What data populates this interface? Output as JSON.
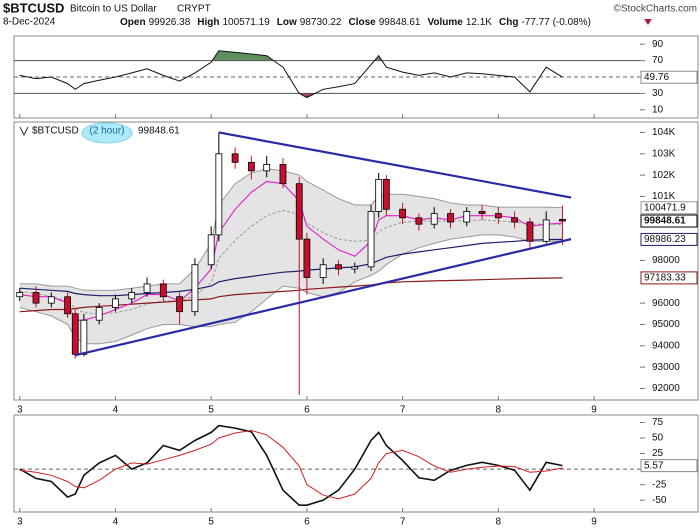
{
  "header": {
    "symbol": "$BTCUSD",
    "name": "Bitcoin to US Dollar",
    "exchange": "CRYPT",
    "credit": "©StockCharts.com",
    "date": "8-Dec-2024",
    "quote": [
      {
        "label": "Open",
        "value": "99926.38"
      },
      {
        "label": "High",
        "value": "100571.19"
      },
      {
        "label": "Low",
        "value": "98730.22"
      },
      {
        "label": "Close",
        "value": "99848.61"
      },
      {
        "label": "Volume",
        "value": "12.1K"
      },
      {
        "label": "Chg",
        "value": "-77.77 (-0.08%)"
      }
    ]
  },
  "chart_data": [
    {
      "type": "line",
      "xlim": [
        2.94,
        9.48
      ],
      "xticks": [
        3,
        4,
        5,
        6,
        7,
        8,
        9
      ],
      "ylim": [
        0,
        100
      ],
      "yticks": [
        90,
        70,
        50,
        30,
        10
      ],
      "last_label": true,
      "levels": [
        {
          "value": 70,
          "fill": "#5f8f5f"
        },
        {
          "value": 50,
          "dash": true
        },
        {
          "value": 30,
          "fill": "#a04a5e"
        }
      ],
      "x": [
        3,
        3.17,
        3.33,
        3.5,
        3.58,
        3.67,
        3.83,
        4,
        4.17,
        4.33,
        4.5,
        4.67,
        4.83,
        5,
        5.08,
        5.25,
        5.42,
        5.58,
        5.75,
        5.92,
        6,
        6.17,
        6.33,
        6.5,
        6.67,
        6.75,
        6.83,
        7,
        7.17,
        7.33,
        7.5,
        7.67,
        7.83,
        8,
        8.17,
        8.33,
        8.5,
        8.67
      ],
      "series": [
        {
          "color": "#111111",
          "values": [
            52,
            48,
            50,
            42,
            35,
            42,
            46,
            50,
            55,
            60,
            52,
            45,
            55,
            68,
            82,
            80,
            78,
            76,
            62,
            30,
            25,
            35,
            38,
            42,
            65,
            76,
            62,
            56,
            52,
            55,
            50,
            55,
            54,
            52,
            50,
            32,
            62,
            49.76
          ]
        }
      ]
    },
    {
      "type": "candlestick",
      "title": "$BTCUSD",
      "period": "(2 hour)",
      "xlim": [
        2.94,
        9.48
      ],
      "xticks": [
        3,
        4,
        5,
        6,
        7,
        8,
        9
      ],
      "x_labels": true,
      "ylim": [
        91460,
        104490
      ],
      "yticks": [
        {
          "value": 104000,
          "label": "104K"
        },
        {
          "value": 103000,
          "label": "103K"
        },
        {
          "value": 102000,
          "label": "102K"
        },
        {
          "value": 101000,
          "label": "101K"
        },
        98000,
        96000,
        95000,
        94000,
        93000,
        92000
      ],
      "up_color": "#ffffff",
      "down_color": "#c8102e",
      "x": [
        3,
        3.17,
        3.33,
        3.5,
        3.58,
        3.67,
        3.83,
        4,
        4.17,
        4.33,
        4.5,
        4.67,
        4.83,
        5,
        5.08,
        5.25,
        5.42,
        5.58,
        5.75,
        5.92,
        6,
        6.17,
        6.33,
        6.5,
        6.67,
        6.75,
        6.83,
        7,
        7.17,
        7.33,
        7.5,
        7.67,
        7.83,
        8,
        8.17,
        8.33,
        8.5,
        8.67
      ],
      "open": [
        96300,
        96500,
        96000,
        96300,
        95500,
        93600,
        95200,
        95800,
        96200,
        96500,
        96900,
        96300,
        95600,
        97800,
        99200,
        103000,
        102600,
        102200,
        102500,
        101600,
        99000,
        97200,
        97800,
        97600,
        97700,
        100300,
        101800,
        100400,
        100000,
        99700,
        100200,
        99800,
        100300,
        100200,
        100000,
        99800,
        98900,
        99926.38
      ],
      "high": [
        96700,
        96800,
        96500,
        96500,
        95700,
        95500,
        96000,
        96400,
        96700,
        97200,
        97100,
        96500,
        98100,
        99600,
        104000,
        103300,
        102900,
        102900,
        102800,
        101900,
        99300,
        98100,
        98000,
        97900,
        100600,
        102100,
        102000,
        100700,
        100200,
        100500,
        100400,
        100500,
        100600,
        100500,
        100300,
        100000,
        100300,
        100571.19
      ],
      "low": [
        96100,
        95800,
        95800,
        95300,
        93400,
        93500,
        95000,
        95600,
        96000,
        96300,
        96100,
        95000,
        95400,
        97600,
        98900,
        102300,
        101800,
        101900,
        101400,
        91700,
        96400,
        96900,
        97300,
        97400,
        97500,
        100000,
        100100,
        99700,
        99400,
        99500,
        99500,
        99600,
        99900,
        99700,
        99500,
        98600,
        98800,
        98730.22
      ],
      "close": [
        96500,
        96000,
        96300,
        95500,
        93600,
        95200,
        95800,
        96200,
        96500,
        96900,
        96300,
        95600,
        97800,
        99200,
        103000,
        102600,
        102200,
        102500,
        101600,
        99000,
        97200,
        97800,
        97600,
        97700,
        100300,
        101800,
        100400,
        100000,
        99700,
        100200,
        99800,
        100300,
        100200,
        100000,
        99800,
        98900,
        99900,
        99848.61
      ],
      "bands": {
        "color": "#9a9a9a",
        "fill": "#e4e4e4",
        "upper": [
          96900,
          96900,
          96800,
          96800,
          96700,
          96600,
          96600,
          96600,
          96700,
          96800,
          96900,
          96900,
          97600,
          98800,
          100600,
          101600,
          102100,
          102300,
          102200,
          102000,
          101700,
          101300,
          100900,
          100600,
          100600,
          101000,
          101100,
          101100,
          101000,
          100900,
          100700,
          100600,
          100600,
          100500,
          100500,
          100500,
          100500,
          100471.9
        ],
        "middle": [
          96550,
          96450,
          96300,
          96100,
          95750,
          95550,
          95500,
          95550,
          95700,
          95950,
          96100,
          96100,
          96350,
          96950,
          98100,
          98950,
          99600,
          100100,
          100350,
          100150,
          99750,
          99300,
          99000,
          98900,
          98950,
          99350,
          99550,
          99800,
          99850,
          99850,
          99850,
          99850,
          99900,
          99850,
          99800,
          99700,
          99700,
          99680
        ],
        "lower": [
          95800,
          95600,
          95400,
          95000,
          94400,
          94100,
          94100,
          94200,
          94500,
          94800,
          95000,
          95000,
          94900,
          94900,
          95000,
          95100,
          95600,
          96200,
          96800,
          96700,
          96500,
          96300,
          96500,
          97000,
          97300,
          97500,
          97800,
          98300,
          98600,
          98800,
          99000,
          99100,
          99200,
          99200,
          99100,
          98900,
          98900,
          98900
        ]
      },
      "series": [
        {
          "color": "#8b1a1a",
          "width": 1.2,
          "last_label": true,
          "values": [
            95600,
            95650,
            95700,
            95700,
            95750,
            95800,
            95850,
            95900,
            95950,
            96000,
            96050,
            96100,
            96150,
            96200,
            96300,
            96400,
            96450,
            96500,
            96550,
            96600,
            96650,
            96700,
            96750,
            96800,
            96850,
            96900,
            96950,
            97000,
            97020,
            97040,
            97060,
            97080,
            97100,
            97120,
            97140,
            97160,
            97175,
            97183.33
          ]
        },
        {
          "color": "#1f1f6e",
          "width": 1.2,
          "last_label": true,
          "values": [
            96700,
            96650,
            96600,
            96550,
            96450,
            96400,
            96350,
            96350,
            96400,
            96450,
            96500,
            96550,
            96650,
            96800,
            97000,
            97150,
            97250,
            97350,
            97450,
            97500,
            97550,
            97600,
            97650,
            97700,
            97850,
            98000,
            98150,
            98300,
            98400,
            98500,
            98600,
            98700,
            98800,
            98850,
            98900,
            98950,
            98980,
            98986.23
          ]
        },
        {
          "color": "#e020c8",
          "width": 1.1,
          "values": [
            96400,
            96300,
            96300,
            96000,
            95200,
            95200,
            95400,
            95700,
            96000,
            96400,
            96400,
            96100,
            96700,
            97600,
            99300,
            100400,
            101200,
            101700,
            101600,
            100800,
            99600,
            99000,
            98500,
            98200,
            98900,
            99900,
            100100,
            100100,
            99900,
            100000,
            99900,
            100100,
            100100,
            100100,
            100000,
            99600,
            99700,
            99750
          ]
        }
      ],
      "trendlines": [
        {
          "color": "#2a2aa8",
          "x": [
            5.08,
            8.76
          ],
          "y": [
            104000,
            100950
          ]
        },
        {
          "color": "#2a2aa8",
          "x": [
            3.58,
            8.76
          ],
          "y": [
            93560,
            99000
          ]
        }
      ]
    },
    {
      "type": "line",
      "xlim": [
        2.94,
        9.48
      ],
      "xticks": [
        3,
        4,
        5,
        6,
        7,
        8,
        9
      ],
      "x_labels": true,
      "ylim": [
        -69,
        87
      ],
      "yticks": [
        75,
        50,
        25,
        0,
        -25,
        -50
      ],
      "last_label": true,
      "levels": [
        {
          "value": 0,
          "dash": true
        }
      ],
      "x": [
        3,
        3.17,
        3.33,
        3.5,
        3.58,
        3.67,
        3.83,
        4,
        4.17,
        4.33,
        4.5,
        4.67,
        4.83,
        5,
        5.08,
        5.25,
        5.42,
        5.58,
        5.75,
        5.92,
        6,
        6.17,
        6.33,
        6.5,
        6.67,
        6.75,
        6.83,
        7,
        7.17,
        7.33,
        7.5,
        7.67,
        7.83,
        8,
        8.17,
        8.33,
        8.5,
        8.67
      ],
      "series": [
        {
          "color": "#111111",
          "width": 1.6,
          "values": [
            0,
            -15,
            -20,
            -45,
            -40,
            -10,
            10,
            22,
            0,
            10,
            38,
            30,
            46,
            59,
            70,
            66,
            60,
            22,
            -34,
            -58,
            -58,
            -50,
            -34,
            0,
            46,
            59,
            38,
            14,
            -14,
            -18,
            -2,
            6,
            11,
            6,
            -2,
            -34,
            11,
            5.57
          ]
        },
        {
          "color": "#cc2222",
          "width": 1,
          "values": [
            -2,
            -5,
            -10,
            -20,
            -28,
            -30,
            -18,
            0,
            10,
            8,
            15,
            22,
            30,
            40,
            50,
            58,
            62,
            55,
            35,
            5,
            -25,
            -42,
            -48,
            -40,
            -15,
            10,
            25,
            30,
            20,
            5,
            -5,
            0,
            3,
            5,
            4,
            -5,
            -3,
            2
          ]
        }
      ]
    }
  ]
}
